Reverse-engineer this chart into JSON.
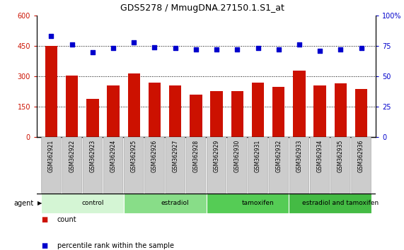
{
  "title": "GDS5278 / MmugDNA.27150.1.S1_at",
  "samples": [
    "GSM362921",
    "GSM362922",
    "GSM362923",
    "GSM362924",
    "GSM362925",
    "GSM362926",
    "GSM362927",
    "GSM362928",
    "GSM362929",
    "GSM362930",
    "GSM362931",
    "GSM362932",
    "GSM362933",
    "GSM362934",
    "GSM362935",
    "GSM362936"
  ],
  "counts": [
    450,
    302,
    190,
    255,
    313,
    268,
    255,
    210,
    228,
    228,
    270,
    248,
    328,
    253,
    265,
    238
  ],
  "percentile_ranks": [
    83,
    76,
    70,
    73,
    78,
    74,
    73,
    72,
    72,
    72,
    73,
    72,
    76,
    71,
    72,
    73
  ],
  "groups": [
    {
      "label": "control",
      "start": 0,
      "end": 4,
      "color": "#d4f5d4"
    },
    {
      "label": "estradiol",
      "start": 4,
      "end": 8,
      "color": "#88dd88"
    },
    {
      "label": "tamoxifen",
      "start": 8,
      "end": 12,
      "color": "#55cc55"
    },
    {
      "label": "estradiol and tamoxifen",
      "start": 12,
      "end": 16,
      "color": "#44bb44"
    }
  ],
  "bar_color": "#cc1100",
  "dot_color": "#0000cc",
  "left_ylim": [
    0,
    600
  ],
  "right_ylim": [
    0,
    100
  ],
  "left_yticks": [
    0,
    150,
    300,
    450,
    600
  ],
  "right_yticks": [
    0,
    25,
    50,
    75,
    100
  ],
  "grid_values": [
    150,
    300,
    450
  ],
  "background_color": "#ffffff",
  "agent_label": "agent",
  "sample_bg_color": "#cccccc",
  "group_bar_bg": "#ffffff"
}
